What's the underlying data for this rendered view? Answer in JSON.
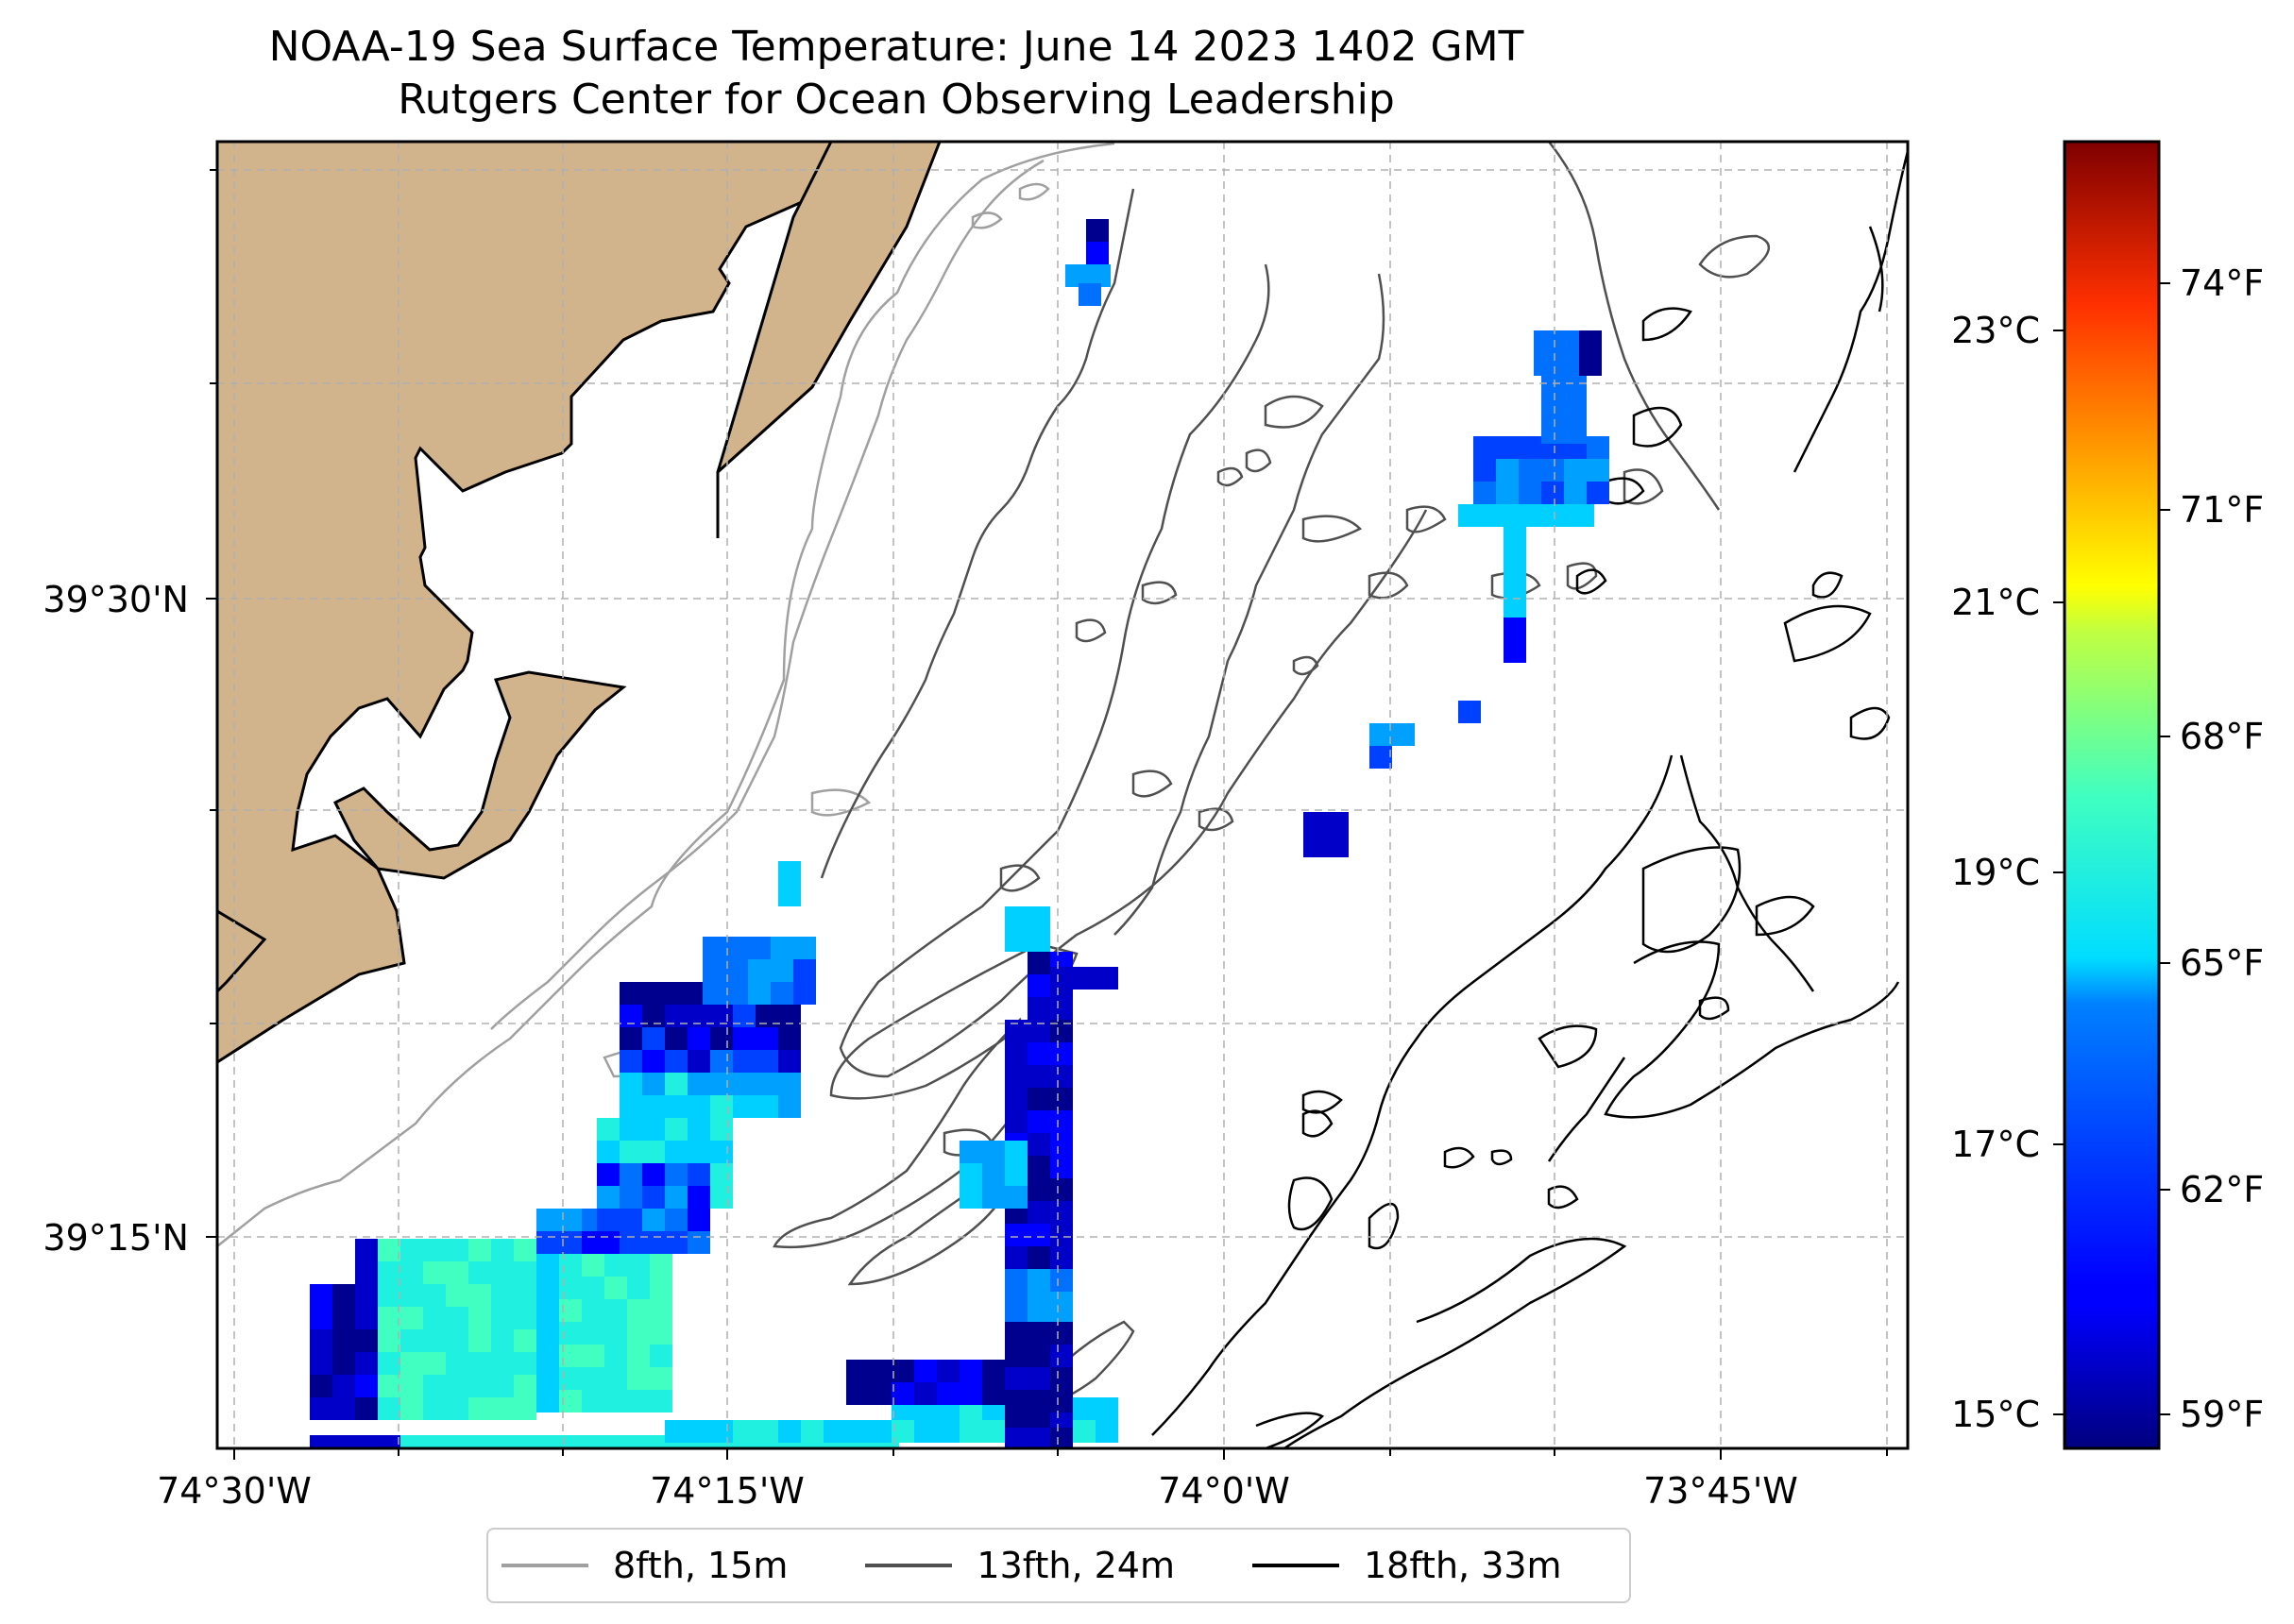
{
  "title": {
    "line1": "NOAA-19 Sea Surface Temperature: June 14 2023 1402 GMT",
    "line2": "Rutgers Center for Ocean Observing Leadership"
  },
  "axes": {
    "x_ticks": [
      "74°30'W",
      "74°15'W",
      "74°0'W",
      "73°45'W"
    ],
    "y_ticks": [
      "39°30'N",
      "39°15'N"
    ]
  },
  "colorbar": {
    "celsius": [
      "23°C",
      "21°C",
      "19°C",
      "17°C",
      "15°C"
    ],
    "fahrenheit": [
      "74°F",
      "71°F",
      "68°F",
      "65°F",
      "62°F",
      "59°F"
    ],
    "colormap": "jet"
  },
  "legend": [
    {
      "label": "8fth, 15m",
      "color": "#a0a0a0"
    },
    {
      "label": "13fth, 24m",
      "color": "#505050"
    },
    {
      "label": "18fth, 33m",
      "color": "#000000"
    }
  ],
  "colors": {
    "land": "#d2b48c",
    "grid": "#b0b0b0"
  }
}
